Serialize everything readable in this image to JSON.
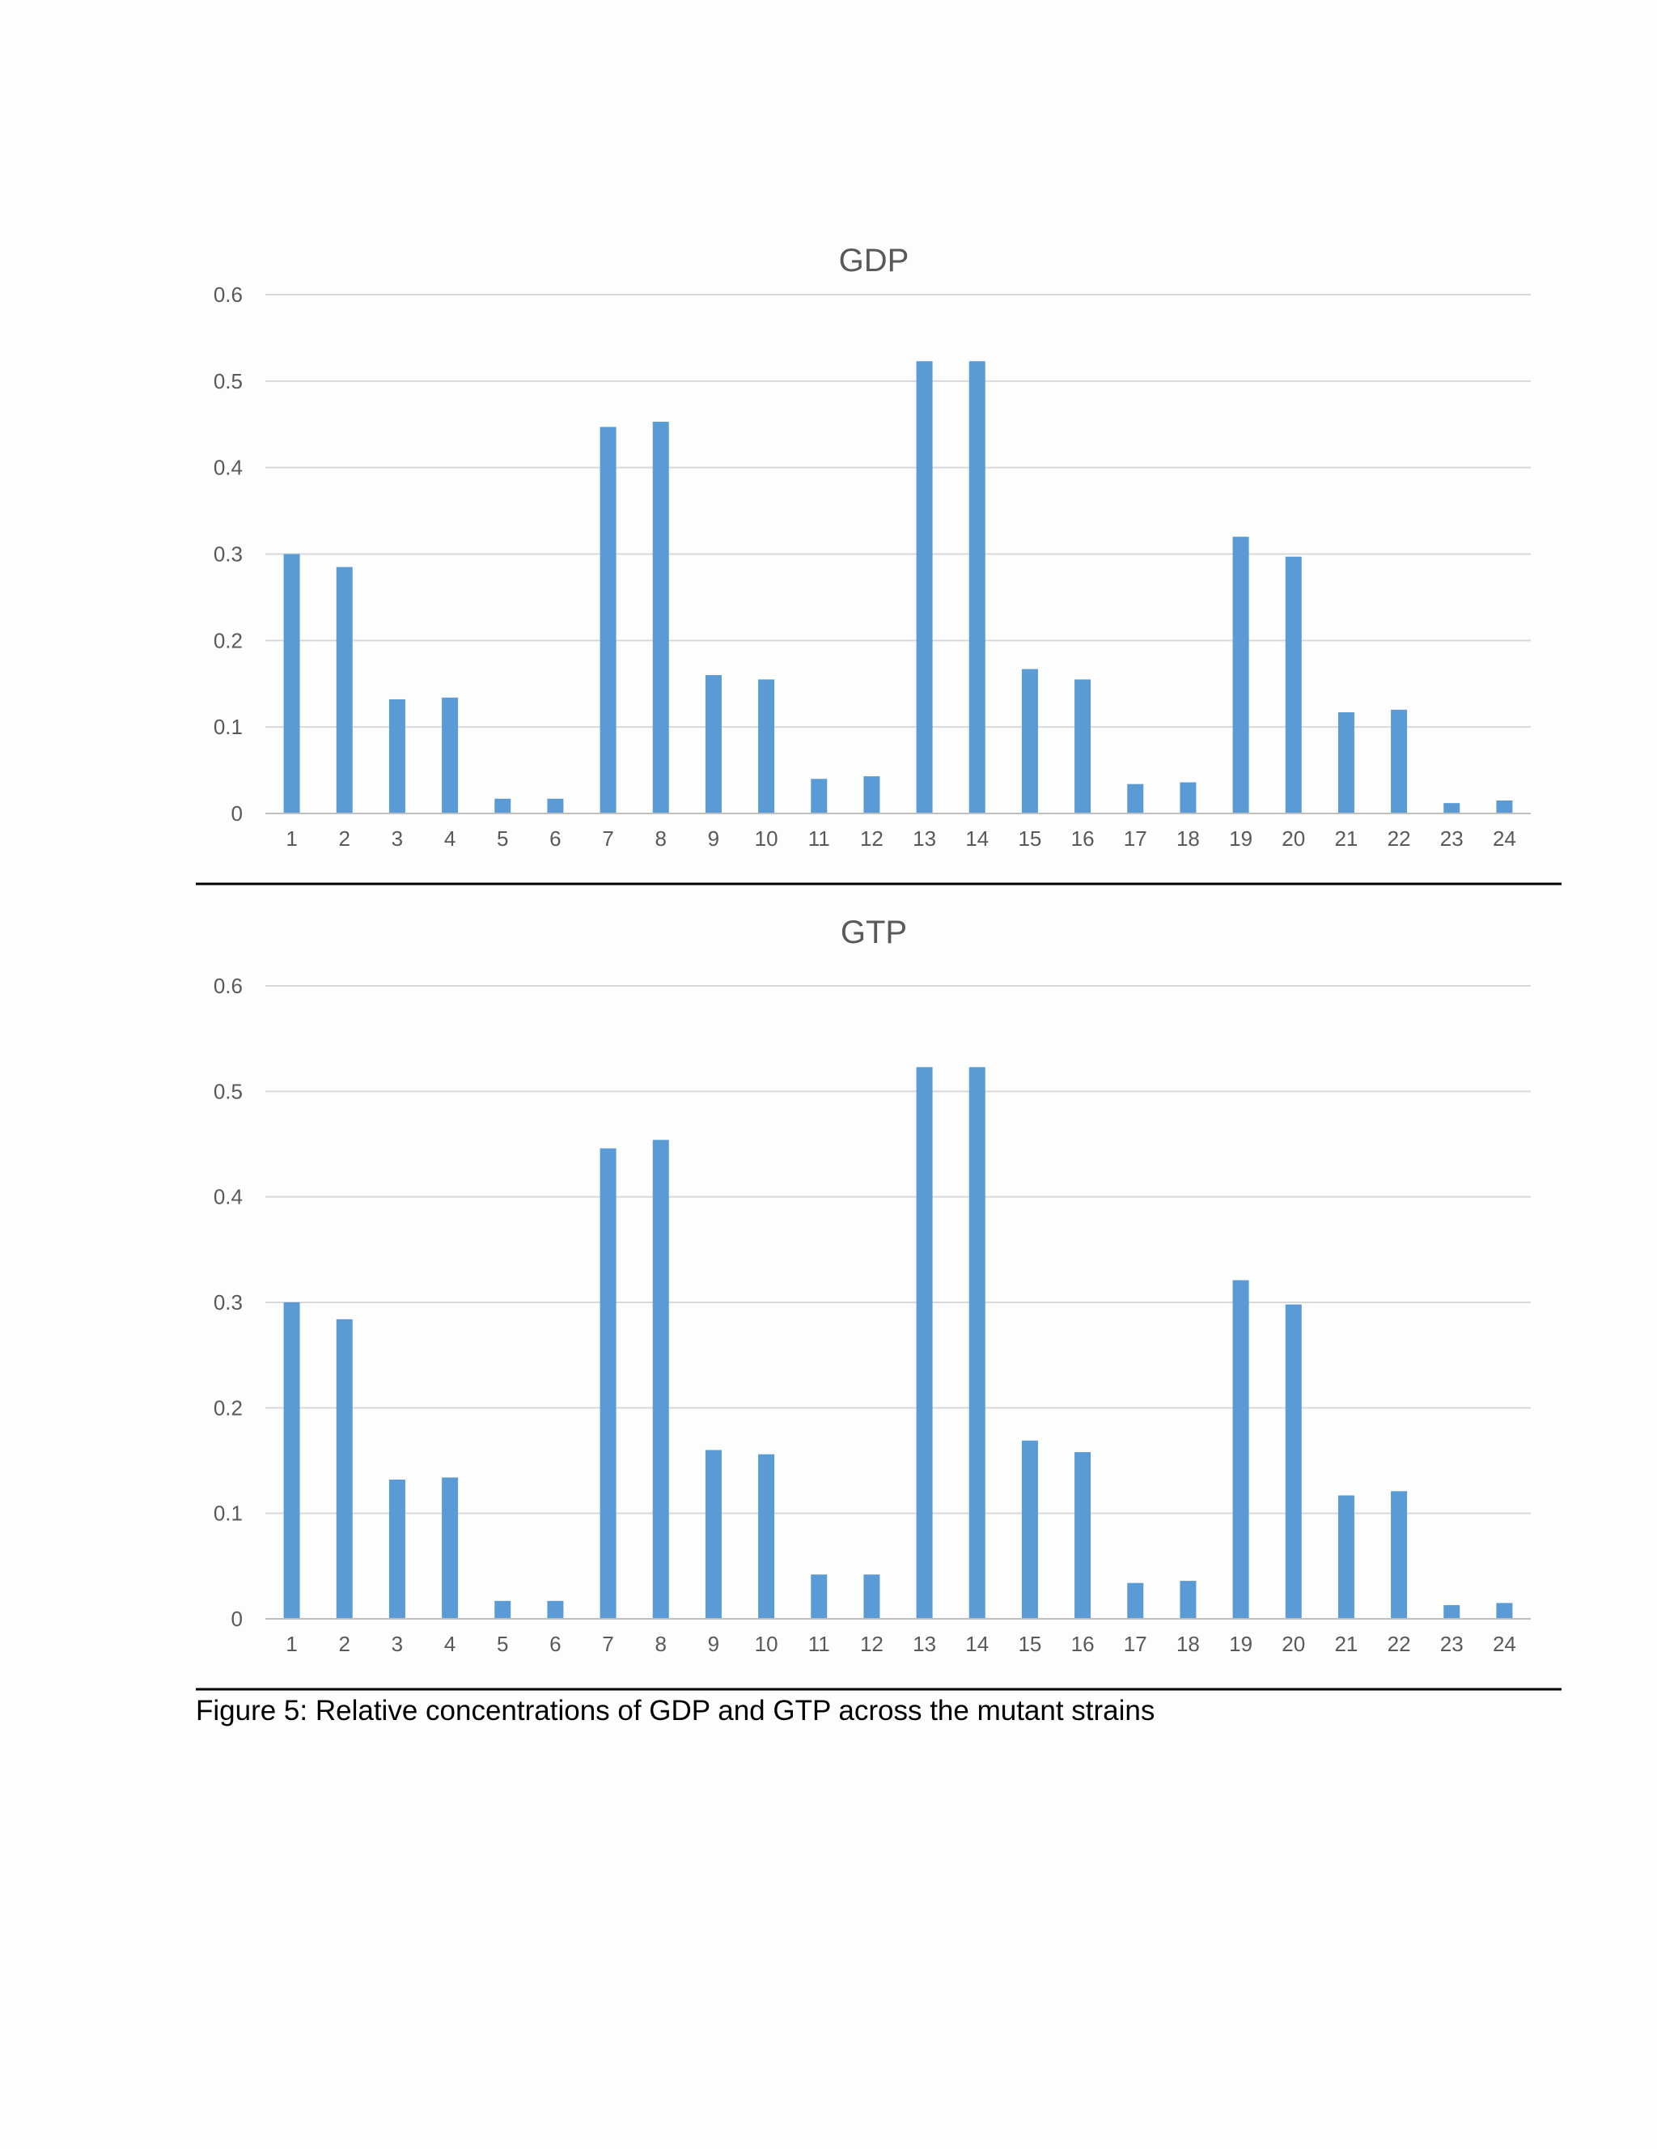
{
  "chart_data": [
    {
      "type": "bar",
      "title": "GDP",
      "categories": [
        "1",
        "2",
        "3",
        "4",
        "5",
        "6",
        "7",
        "8",
        "9",
        "10",
        "11",
        "12",
        "13",
        "14",
        "15",
        "16",
        "17",
        "18",
        "19",
        "20",
        "21",
        "22",
        "23",
        "24"
      ],
      "values": [
        0.3,
        0.285,
        0.132,
        0.134,
        0.017,
        0.017,
        0.447,
        0.453,
        0.16,
        0.155,
        0.04,
        0.043,
        0.523,
        0.523,
        0.167,
        0.155,
        0.034,
        0.036,
        0.32,
        0.297,
        0.117,
        0.12,
        0.012,
        0.015
      ],
      "yticks": [
        "0",
        "0.1",
        "0.2",
        "0.3",
        "0.4",
        "0.5",
        "0.6"
      ],
      "ylim": [
        0,
        0.6
      ],
      "xlabel": "",
      "ylabel": "",
      "grid": true,
      "legend": "none",
      "bar_color": "#5b9bd5"
    },
    {
      "type": "bar",
      "title": "GTP",
      "categories": [
        "1",
        "2",
        "3",
        "4",
        "5",
        "6",
        "7",
        "8",
        "9",
        "10",
        "11",
        "12",
        "13",
        "14",
        "15",
        "16",
        "17",
        "18",
        "19",
        "20",
        "21",
        "22",
        "23",
        "24"
      ],
      "values": [
        0.3,
        0.284,
        0.132,
        0.134,
        0.017,
        0.017,
        0.446,
        0.454,
        0.16,
        0.156,
        0.042,
        0.042,
        0.523,
        0.523,
        0.169,
        0.158,
        0.034,
        0.036,
        0.321,
        0.298,
        0.117,
        0.121,
        0.013,
        0.015
      ],
      "yticks": [
        "0",
        "0.1",
        "0.2",
        "0.3",
        "0.4",
        "0.5",
        "0.6"
      ],
      "ylim": [
        0,
        0.6
      ],
      "xlabel": "",
      "ylabel": "",
      "grid": true,
      "legend": "none",
      "bar_color": "#5b9bd5"
    }
  ],
  "caption": "Figure 5: Relative concentrations  of GDP and GTP across the mutant strains"
}
